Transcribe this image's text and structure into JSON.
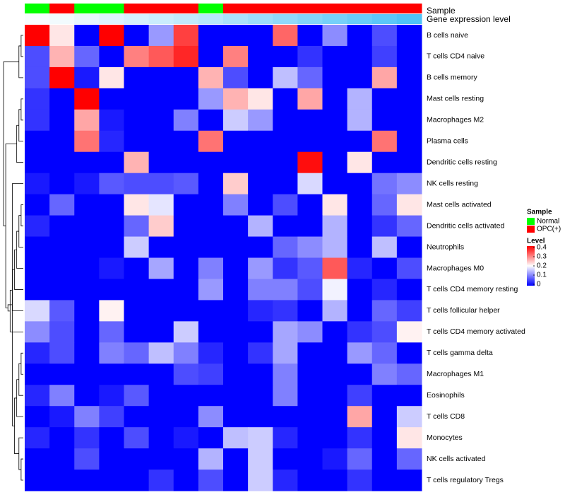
{
  "colors": {
    "low": "#0000ff",
    "mid": "#ffffff",
    "high": "#ff0000",
    "normal": "#00ff00",
    "opc": "#ff0000",
    "dendro": "#000000"
  },
  "chart_data": {
    "type": "heatmap",
    "annotation_labels": {
      "sample": "Sample",
      "expression": "Gene expression level"
    },
    "sample_groups": [
      "Normal",
      "OPC(+)",
      "Normal",
      "Normal",
      "OPC(+)",
      "OPC(+)",
      "OPC(+)",
      "Normal",
      "OPC(+)",
      "OPC(+)",
      "OPC(+)",
      "OPC(+)",
      "OPC(+)",
      "OPC(+)",
      "OPC(+)",
      "OPC(+)"
    ],
    "expression_levels": [
      0.02,
      0.04,
      0.07,
      0.1,
      0.13,
      0.16,
      0.19,
      0.22,
      0.26,
      0.3,
      0.34,
      0.38,
      0.42,
      0.46,
      0.5,
      0.54
    ],
    "rows": [
      "B cells naive",
      "T cells CD4 naive",
      "B cells memory",
      "Mast cells resting",
      "Macrophages M2",
      "Plasma cells",
      "Dendritic cells resting",
      "NK cells resting",
      "Mast cells activated",
      "Dendritic cells activated",
      "Neutrophils",
      "Macrophages M0",
      "T cells CD4 memory resting",
      "T cells follicular helper",
      "T cells CD4 memory activated",
      "T cells gamma delta",
      "Macrophages M1",
      "Eosinophils",
      "T cells CD8",
      "Monocytes",
      "NK cells activated",
      "T cells regulatory  Tregs"
    ],
    "values": [
      [
        0.4,
        0.22,
        0,
        0.4,
        0,
        0.12,
        0.35,
        0,
        0,
        0,
        0.32,
        0,
        0.11,
        0,
        0.06,
        0
      ],
      [
        0.06,
        0.26,
        0.08,
        0,
        0.3,
        0.33,
        0.37,
        0,
        0.3,
        0,
        0,
        0.04,
        0,
        0,
        0.05,
        0
      ],
      [
        0.06,
        0.4,
        0.02,
        0.22,
        0,
        0,
        0,
        0.26,
        0.06,
        0,
        0.15,
        0.08,
        0,
        0,
        0.27,
        0
      ],
      [
        0.04,
        0,
        0.4,
        0,
        0,
        0,
        0,
        0.12,
        0.26,
        0.22,
        0,
        0.27,
        0,
        0.14,
        0,
        0
      ],
      [
        0.04,
        0,
        0.27,
        0.02,
        0,
        0,
        0.1,
        0,
        0.16,
        0.12,
        0,
        0,
        0,
        0.14,
        0,
        0
      ],
      [
        0,
        0,
        0.31,
        0.03,
        0,
        0,
        0,
        0.31,
        0,
        0,
        0,
        0,
        0,
        0,
        0.31,
        0
      ],
      [
        0,
        0,
        0,
        0,
        0.26,
        0,
        0,
        0,
        0,
        0,
        0,
        0.39,
        0,
        0.22,
        0,
        0
      ],
      [
        0.02,
        0,
        0.02,
        0.07,
        0.06,
        0.06,
        0.07,
        0,
        0.24,
        0,
        0,
        0.17,
        0,
        0,
        0.09,
        0.11
      ],
      [
        0,
        0.08,
        0,
        0,
        0.22,
        0.18,
        0,
        0,
        0.1,
        0,
        0.06,
        0,
        0.22,
        0,
        0.08,
        0.22
      ],
      [
        0.03,
        0,
        0,
        0,
        0.08,
        0.24,
        0,
        0,
        0,
        0.14,
        0,
        0,
        0.14,
        0,
        0.04,
        0.08
      ],
      [
        0,
        0,
        0,
        0,
        0.16,
        0,
        0,
        0,
        0,
        0,
        0.08,
        0.11,
        0.14,
        0,
        0.15,
        0
      ],
      [
        0,
        0,
        0,
        0.02,
        0,
        0.13,
        0,
        0.1,
        0,
        0.12,
        0.04,
        0.07,
        0.33,
        0.03,
        0,
        0.06
      ],
      [
        0,
        0,
        0,
        0,
        0,
        0,
        0,
        0.12,
        0,
        0.1,
        0.1,
        0.06,
        0.19,
        0,
        0.03,
        0
      ],
      [
        0.17,
        0.07,
        0,
        0.21,
        0,
        0,
        0,
        0,
        0,
        0.03,
        0.04,
        0,
        0.14,
        0,
        0.08,
        0.05
      ],
      [
        0.11,
        0.06,
        0,
        0.08,
        0,
        0,
        0.16,
        0,
        0,
        0,
        0.13,
        0.11,
        0,
        0.04,
        0.06,
        0.21
      ],
      [
        0.03,
        0.06,
        0,
        0.1,
        0.08,
        0.15,
        0.1,
        0.03,
        0,
        0.04,
        0.13,
        0,
        0,
        0.12,
        0.08,
        0
      ],
      [
        0,
        0,
        0,
        0,
        0,
        0,
        0.06,
        0.05,
        0,
        0,
        0.1,
        0,
        0,
        0,
        0.1,
        0.08
      ],
      [
        0.03,
        0.1,
        0,
        0.02,
        0.07,
        0,
        0,
        0,
        0,
        0,
        0.1,
        0,
        0,
        0.05,
        0,
        0
      ],
      [
        0,
        0.02,
        0.1,
        0.05,
        0,
        0,
        0,
        0.11,
        0,
        0,
        0,
        0,
        0,
        0.27,
        0,
        0.16
      ],
      [
        0.03,
        0,
        0.04,
        0,
        0.06,
        0,
        0.02,
        0,
        0.15,
        0.16,
        0.03,
        0,
        0,
        0.04,
        0,
        0.22
      ],
      [
        0,
        0,
        0.06,
        0,
        0,
        0,
        0,
        0.14,
        0,
        0.16,
        0,
        0,
        0.02,
        0.08,
        0,
        0.08
      ],
      [
        0,
        0,
        0,
        0,
        0,
        0.04,
        0,
        0.06,
        0,
        0.16,
        0.03,
        0,
        0,
        0.04,
        0,
        0
      ]
    ],
    "legend_sample": {
      "title": "Sample",
      "entries": [
        "Normal",
        "OPC(+)"
      ]
    },
    "legend_level": {
      "title": "Level",
      "range": [
        0,
        0.4
      ],
      "ticks": [
        "0.4",
        "0.3",
        "0.2",
        "0.1",
        "0"
      ]
    },
    "row_dendrogram": [
      [
        0,
        1
      ],
      [
        22,
        2
      ],
      [
        3,
        4
      ],
      [
        24,
        5
      ],
      [
        25,
        6
      ],
      [
        8,
        9
      ],
      [
        27,
        10
      ],
      [
        28,
        11
      ],
      [
        29,
        12
      ],
      [
        30,
        13
      ],
      [
        31,
        14
      ],
      [
        15,
        16
      ],
      [
        33,
        17
      ],
      [
        34,
        18
      ],
      [
        20,
        21
      ],
      [
        19,
        36
      ],
      [
        35,
        37
      ],
      [
        7,
        38
      ],
      [
        32,
        39
      ],
      [
        26,
        40
      ],
      [
        23,
        41
      ]
    ]
  }
}
